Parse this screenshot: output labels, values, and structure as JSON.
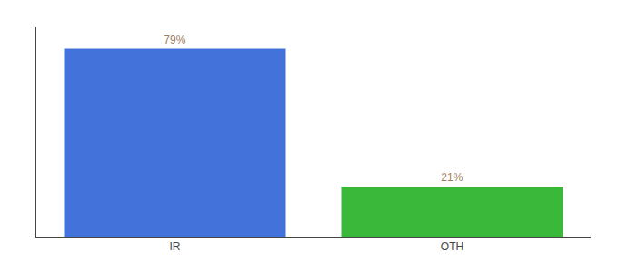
{
  "chart_data": {
    "type": "bar",
    "categories": [
      "IR",
      "OTH"
    ],
    "values": [
      79,
      21
    ],
    "value_labels": [
      "79%",
      "21%"
    ],
    "colors": [
      "#4472db",
      "#3ab83a"
    ],
    "ylim": [
      0,
      88
    ],
    "data_labels": true,
    "tick_labels": "x",
    "grid": false
  }
}
